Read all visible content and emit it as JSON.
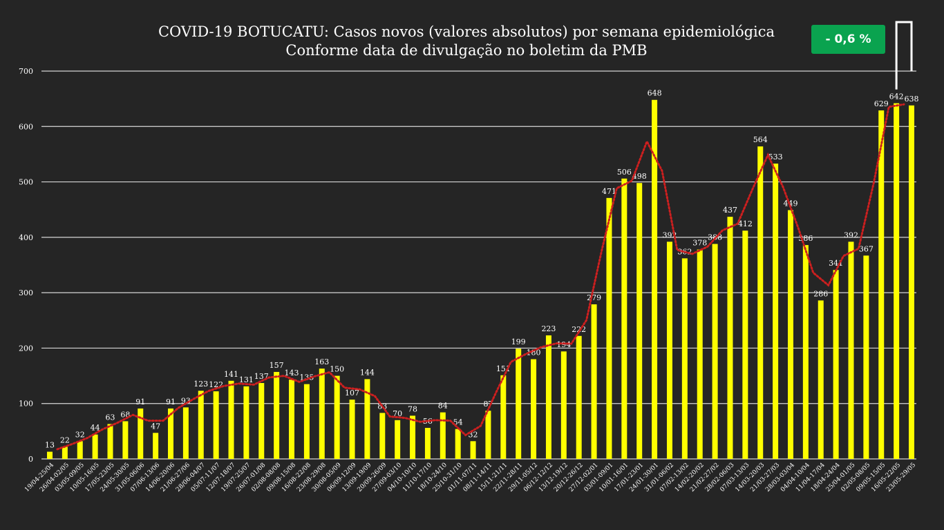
{
  "chart_data": {
    "type": "bar",
    "title": "COVID-19 BOTUCATU: Casos novos (valores absolutos) por semana epidemiológica",
    "subtitle": "Conforme data de divulgação no boletim da PMB",
    "badge": "- 0,6 %",
    "ylim": [
      0,
      700
    ],
    "y_ticks": [
      0,
      100,
      200,
      300,
      400,
      500,
      600,
      700
    ],
    "grid": true,
    "bar_color": "#ffff00",
    "trend_color": "#cc1f1f",
    "trend_style": "dotted moving-average line",
    "categories": [
      "19/04-25/04",
      "26/04-02/05",
      "03/05-09/05",
      "10/05-16/05",
      "17/05-23/05",
      "24/05-30/05",
      "31/05-06/06",
      "07/06-13/06",
      "14/06-20/06",
      "21/06-27/06",
      "28/06-04/07",
      "05/07-11/07",
      "12/07-18/07",
      "19/07-25/07",
      "26/07-01/08",
      "02/08-08/08",
      "09/08-15/08",
      "16/08-22/08",
      "23/08-29/08",
      "30/08-05/09",
      "06/09-12/09",
      "13/09-19/09",
      "20/09-26/09",
      "27/09-03/10",
      "04/10-10/10",
      "11/10-17/10",
      "18/10-24/10",
      "25/10-31/10",
      "01/11-07/11",
      "08/11-14/11",
      "15/11-21/11",
      "22/11-28/11",
      "29/11-05/12",
      "06/12-12/12",
      "13/12-19/12",
      "20/12-26/12",
      "27/12-02/01",
      "03/01-09/01",
      "10/01-16/01",
      "17/01-23/01",
      "24/01-30/01",
      "31/01-06/02",
      "07/02-13/02",
      "14/02-20/02",
      "21/02-27/02",
      "28/02-06/03",
      "07/03-13/03",
      "14/03-20/03",
      "21/03-27/03",
      "28/03-03/04",
      "04/04-10/04",
      "11/04-17/04",
      "18/04-24/04",
      "25/04-01/05",
      "02/05-08/05",
      "09/05-15/05",
      "16/05-22/05",
      "23/05-29/05"
    ],
    "values": [
      13,
      22,
      32,
      44,
      63,
      68,
      91,
      47,
      91,
      93,
      123,
      122,
      141,
      131,
      137,
      157,
      143,
      135,
      163,
      150,
      107,
      144,
      83,
      70,
      78,
      56,
      84,
      54,
      32,
      87,
      151,
      199,
      180,
      223,
      194,
      222,
      279,
      471,
      506,
      498,
      648,
      392,
      362,
      378,
      388,
      437,
      412,
      564,
      533,
      449,
      386,
      286,
      341,
      392,
      367,
      629,
      642,
      638
    ]
  }
}
